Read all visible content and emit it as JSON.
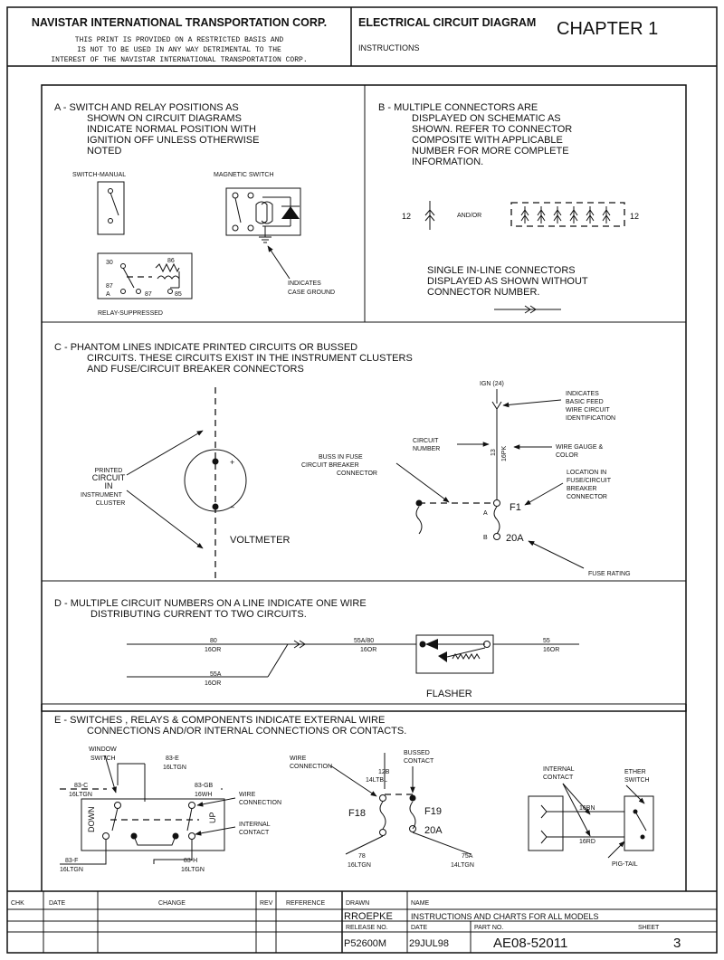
{
  "header": {
    "company": "NAVISTAR INTERNATIONAL TRANSPORTATION CORP.",
    "notice_line1": "THIS PRINT IS PROVIDED ON A RESTRICTED BASIS AND",
    "notice_line2": "IS NOT TO BE USED IN ANY WAY DETRIMENTAL TO THE",
    "notice_line3": "INTEREST OF THE NAVISTAR INTERNATIONAL TRANSPORTATION CORP.",
    "diagram_title": "ELECTRICAL CIRCUIT DIAGRAM",
    "chapter": "CHAPTER 1",
    "section": "INSTRUCTIONS"
  },
  "panel_a": {
    "text": [
      "A  - SWITCH AND RELAY POSITIONS AS",
      "SHOWN ON CIRCUIT DIAGRAMS",
      "INDICATE NORMAL POSITION WITH",
      "IGNITION OFF UNLESS OTHERWISE",
      "NOTED"
    ],
    "switch_manual": "SWITCH-MANUAL",
    "magnetic_switch": "MAGNETIC SWITCH",
    "relay_suppressed": "RELAY-SUPPRESSED",
    "indicates_case_ground": [
      "INDICATES",
      "CASE GROUND"
    ],
    "pins": [
      "30",
      "86",
      "87",
      "87",
      "85",
      "A"
    ]
  },
  "panel_b": {
    "text": [
      "B  - MULTIPLE CONNECTORS ARE",
      "DISPLAYED ON SCHEMATIC AS",
      "SHOWN.  REFER TO CONNECTOR",
      "COMPOSITE WITH APPLICABLE",
      "NUMBER FOR MORE COMPLETE",
      "INFORMATION."
    ],
    "conn_left": "12",
    "and_or": "AND/OR",
    "conn_right": "12",
    "single_inline": [
      "SINGLE IN-LINE CONNECTORS",
      "DISPLAYED AS SHOWN WITHOUT",
      "CONNECTOR NUMBER."
    ]
  },
  "panel_c": {
    "text": [
      "C  - PHANTOM LINES INDICATE PRINTED CIRCUITS OR BUSSED",
      "CIRCUITS.  THESE CIRCUITS EXIST IN THE INSTRUMENT CLUSTERS",
      "AND FUSE/CIRCUIT BREAKER CONNECTORS"
    ],
    "printed_circuit": [
      "PRINTED",
      "CIRCUIT",
      "IN",
      "INSTRUMENT",
      "CLUSTER"
    ],
    "plus": "+",
    "minus": "–",
    "voltmeter": "VOLTMETER",
    "ign": "IGN (24)",
    "indicates_basic_feed": [
      "INDICATES",
      "BASIC FEED",
      "WIRE CIRCUIT",
      "IDENTIFICATION"
    ],
    "circuit_number": [
      "CIRCUIT",
      "NUMBER"
    ],
    "wire_number": "13",
    "wire_gauge_label": "16PK",
    "wire_gauge_color": [
      "WIRE GAUGE &",
      "COLOR"
    ],
    "buss_in_fuse": [
      "BUSS IN FUSE",
      "CIRCUIT BREAKER",
      "CONNECTOR"
    ],
    "location_in_fuse": [
      "LOCATION IN",
      "FUSE/CIRCUIT",
      "BREAKER",
      "CONNECTOR"
    ],
    "f1": "F1",
    "pin_a": "A",
    "pin_b": "B",
    "amp": "20A",
    "fuse_rating": "FUSE RATING"
  },
  "panel_d": {
    "text": [
      "D  - MULTIPLE CIRCUIT NUMBERS ON A LINE INDICATE ONE WIRE",
      "DISTRIBUTING CURRENT TO TWO CIRCUITS."
    ],
    "w1": [
      "80",
      "16OR"
    ],
    "w2": [
      "55A/80",
      "16OR"
    ],
    "w3": [
      "55",
      "16OR"
    ],
    "w4": [
      "55A",
      "16OR"
    ],
    "flasher": "FLASHER"
  },
  "panel_e": {
    "text": [
      "E  - SWITCHES , RELAYS & COMPONENTS INDICATE EXTERNAL WIRE",
      "CONNECTIONS AND/OR INTERNAL CONNECTIONS OR CONTACTS."
    ],
    "window_switch": [
      "WINDOW",
      "SWITCH"
    ],
    "w83e": [
      "83-E",
      "16LTGN"
    ],
    "w83c": [
      "83-C",
      "16LTGN"
    ],
    "w83gb": [
      "83-GB",
      "16WH"
    ],
    "wire_connection": [
      "WIRE",
      "CONNECTION"
    ],
    "internal_contact": [
      "INTERNAL",
      "CONTACT"
    ],
    "down": "DOWN",
    "up": "UP",
    "w83f": [
      "83-F",
      "16LTGN"
    ],
    "w83h": [
      "83-H",
      "16LTGN"
    ],
    "wire_connection2": [
      "WIRE",
      "CONNECTION"
    ],
    "bussed_contact": [
      "BUSSED",
      "CONTACT"
    ],
    "w12b": [
      "12B",
      "14LTBL"
    ],
    "f18": "F18",
    "f19": "F19",
    "amp": "20A",
    "w78": [
      "78",
      "16LTGN"
    ],
    "w75a": [
      "75A",
      "14LTGN"
    ],
    "internal_contact2": [
      "INTERNAL",
      "CONTACT"
    ],
    "ether_switch": [
      "ETHER",
      "SWITCH"
    ],
    "w16bn": "16BN",
    "w16rd": "16RD",
    "pig_tail": "PIG-TAIL"
  },
  "title_block": {
    "headers": [
      "CHK",
      "DATE",
      "CHANGE",
      "REV",
      "REFERENCE"
    ],
    "drawn_label": "DRAWN",
    "drawn_by": "RROEPKE",
    "name_label": "NAME",
    "name_value": "INSTRUCTIONS AND CHARTS FOR ALL MODELS",
    "release_label": "RELEASE NO.",
    "release_value": "P52600M",
    "date_label": "DATE",
    "date_value": "29JUL98",
    "part_label": "PART NO.",
    "part_value": "AE08-52011",
    "sheet_label": "SHEET",
    "sheet_value": "3"
  }
}
